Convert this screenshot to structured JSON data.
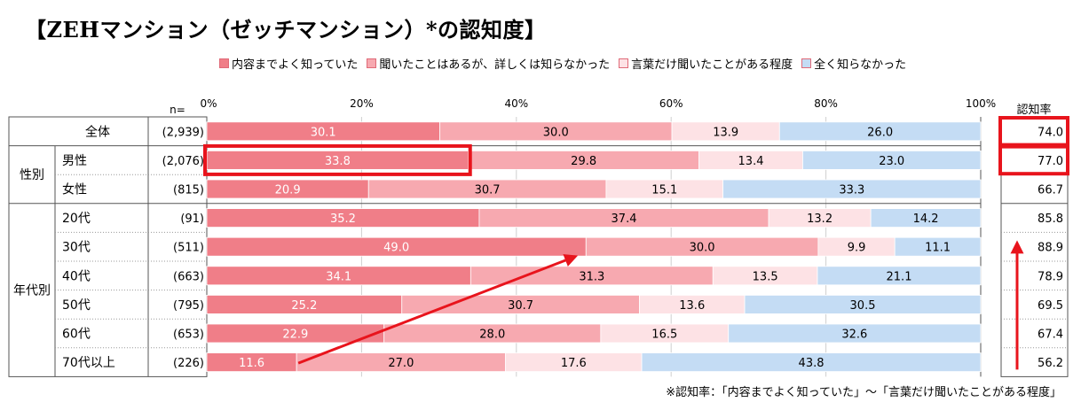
{
  "title": "【ZEHマンション（ゼッチマンション）*の認知度】",
  "legend": [
    {
      "label": "内容までよく知っていた",
      "color": "#f07e88"
    },
    {
      "label": "聞いたことはあるが、詳しくは知らなかった",
      "color": "#f7a9b0"
    },
    {
      "label": "言葉だけ聞いたことがある程度",
      "color": "#fde2e5"
    },
    {
      "label": "全く知らなかった",
      "color": "#c4dcf4"
    }
  ],
  "note": "※認知率：「内容までよく知っていた」～「言葉だけ聞いたことがある程度」",
  "colors": {
    "highlight": "#e8141c",
    "arrow": "#e8141c",
    "border": "#555555"
  },
  "chart_data": {
    "type": "bar",
    "orientation": "horizontal",
    "stacked": true,
    "xlim": [
      0,
      100
    ],
    "x_ticks": [
      "0%",
      "20%",
      "40%",
      "60%",
      "80%",
      "100%"
    ],
    "n_header": "n=",
    "rate_header": "認知率",
    "group_labels": [
      "性別",
      "年代別"
    ],
    "categories": [
      {
        "group": "",
        "label": "全体",
        "n": "(2,939)",
        "rate": "74.0"
      },
      {
        "group": "性別",
        "label": "男性",
        "n": "(2,076)",
        "rate": "77.0"
      },
      {
        "group": "性別",
        "label": "女性",
        "n": "(815)",
        "rate": "66.7"
      },
      {
        "group": "年代別",
        "label": "20代",
        "n": "(91)",
        "rate": "85.8"
      },
      {
        "group": "年代別",
        "label": "30代",
        "n": "(511)",
        "rate": "88.9"
      },
      {
        "group": "年代別",
        "label": "40代",
        "n": "(663)",
        "rate": "78.9"
      },
      {
        "group": "年代別",
        "label": "50代",
        "n": "(795)",
        "rate": "69.5"
      },
      {
        "group": "年代別",
        "label": "60代",
        "n": "(653)",
        "rate": "67.4"
      },
      {
        "group": "年代別",
        "label": "70代以上",
        "n": "(226)",
        "rate": "56.2"
      }
    ],
    "series": [
      {
        "name": "内容までよく知っていた",
        "color": "#f07e88",
        "label_color": "#ffffff",
        "values": [
          30.1,
          33.8,
          20.9,
          35.2,
          49.0,
          34.1,
          25.2,
          22.9,
          11.6
        ]
      },
      {
        "name": "聞いたことはあるが、詳しくは知らなかった",
        "color": "#f7a9b0",
        "label_color": "#000000",
        "values": [
          30.0,
          29.8,
          30.7,
          37.4,
          30.0,
          31.3,
          30.7,
          28.0,
          27.0
        ]
      },
      {
        "name": "言葉だけ聞いたことがある程度",
        "color": "#fde2e5",
        "label_color": "#000000",
        "values": [
          13.9,
          13.4,
          15.1,
          13.2,
          9.9,
          13.5,
          13.6,
          16.5,
          17.6
        ]
      },
      {
        "name": "全く知らなかった",
        "color": "#c4dcf4",
        "label_color": "#000000",
        "values": [
          26.0,
          23.0,
          33.3,
          14.2,
          11.1,
          21.1,
          30.5,
          32.6,
          43.8
        ]
      }
    ],
    "annotations": {
      "highlight_bar_segment": {
        "row": "男性",
        "series": "内容までよく知っていた"
      },
      "highlight_rates": [
        "全体",
        "男性"
      ],
      "trend_arrow": {
        "from_row": "70代以上",
        "to_row": "30代",
        "series": "内容までよく知っていた"
      },
      "rate_arrow": {
        "from_row": "70代以上",
        "to_row": "30代"
      }
    }
  }
}
